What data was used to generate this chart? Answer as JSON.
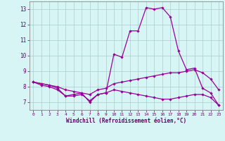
{
  "x_values": [
    0,
    1,
    2,
    3,
    4,
    5,
    6,
    7,
    8,
    9,
    10,
    11,
    12,
    13,
    14,
    15,
    16,
    17,
    18,
    19,
    20,
    21,
    22,
    23
  ],
  "line1": [
    8.3,
    8.2,
    8.1,
    7.9,
    7.4,
    7.5,
    7.6,
    7.0,
    7.5,
    7.6,
    10.1,
    9.9,
    11.6,
    11.6,
    13.1,
    13.0,
    13.1,
    12.5,
    10.3,
    9.1,
    9.2,
    7.9,
    7.6,
    6.8
  ],
  "line2": [
    8.3,
    8.2,
    8.1,
    8.0,
    7.8,
    7.7,
    7.6,
    7.5,
    7.8,
    7.9,
    8.2,
    8.3,
    8.4,
    8.5,
    8.6,
    8.7,
    8.8,
    8.9,
    8.9,
    9.0,
    9.1,
    8.9,
    8.5,
    7.8
  ],
  "line3": [
    8.3,
    8.1,
    8.0,
    7.8,
    7.4,
    7.4,
    7.5,
    7.1,
    7.5,
    7.6,
    7.8,
    7.7,
    7.6,
    7.5,
    7.4,
    7.3,
    7.2,
    7.2,
    7.3,
    7.4,
    7.5,
    7.5,
    7.3,
    6.8
  ],
  "line_color": "#990099",
  "bg_color": "#d8f5f5",
  "grid_color": "#aacccc",
  "ylabel_values": [
    7,
    8,
    9,
    10,
    11,
    12,
    13
  ],
  "xlabel": "Windchill (Refroidissement éolien,°C)",
  "ylim": [
    6.5,
    13.5
  ],
  "xlim": [
    -0.5,
    23.5
  ]
}
